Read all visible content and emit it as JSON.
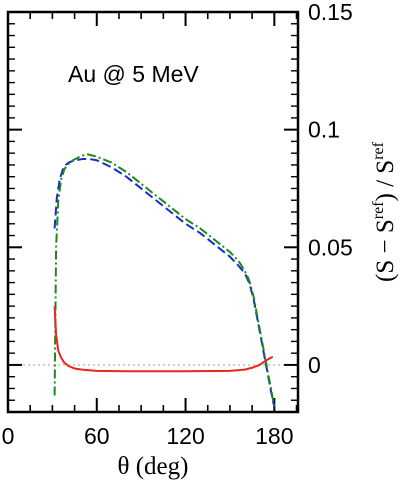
{
  "chart_data": {
    "type": "line",
    "annotation": "Au @ 5 MeV",
    "xlabel": "θ (deg)",
    "ylabel": {
      "base": "(S − S",
      "sup1": "ref",
      "mid": ") / S",
      "sup2": "ref"
    },
    "xlim": [
      0,
      196
    ],
    "ylim": [
      -0.02,
      0.15
    ],
    "x_ticks": [
      0,
      60,
      120,
      180
    ],
    "y_ticks": [
      0,
      0.05,
      0.1,
      0.15
    ],
    "x_tick_labels": [
      "0",
      "60",
      "120",
      "180"
    ],
    "y_tick_labels": [
      "0",
      "0.05",
      "0.1",
      "0.15"
    ],
    "grid": false,
    "reference_line": {
      "y": 0,
      "style": "dotted",
      "color": "#aaaaaa"
    },
    "series": [
      {
        "color": "#1a2bcc",
        "dash": "dashed",
        "x": [
          31.5,
          33,
          35,
          37,
          39,
          41,
          43,
          46,
          50,
          55,
          60,
          70,
          80,
          90,
          100,
          110,
          120,
          130,
          140,
          150,
          156,
          160,
          163,
          166,
          169,
          172,
          175,
          178,
          180
        ],
        "y": [
          0.058,
          0.071,
          0.079,
          0.083,
          0.085,
          0.086,
          0.0865,
          0.087,
          0.0875,
          0.0875,
          0.087,
          0.084,
          0.08,
          0.075,
          0.07,
          0.065,
          0.06,
          0.056,
          0.051,
          0.046,
          0.042,
          0.039,
          0.035,
          0.028,
          0.018,
          0.008,
          -0.002,
          -0.012,
          -0.018
        ]
      },
      {
        "color": "#1a8a1a",
        "dash": "dash-dot",
        "x": [
          31.5,
          32.5,
          34,
          36,
          38,
          40,
          42,
          44,
          47,
          50,
          54,
          60,
          70,
          80,
          90,
          100,
          110,
          120,
          130,
          140,
          150,
          156,
          160,
          163,
          166,
          169,
          172,
          175,
          178,
          180
        ],
        "y": [
          -0.013,
          0.05,
          0.07,
          0.079,
          0.083,
          0.085,
          0.086,
          0.087,
          0.088,
          0.089,
          0.0895,
          0.0885,
          0.086,
          0.082,
          0.077,
          0.072,
          0.067,
          0.062,
          0.058,
          0.053,
          0.048,
          0.044,
          0.04,
          0.036,
          0.029,
          0.019,
          0.009,
          -0.001,
          -0.011,
          -0.018
        ]
      },
      {
        "color": "#e8261b",
        "dash": "solid",
        "x": [
          31.5,
          32.5,
          34,
          36,
          38,
          41,
          45,
          50,
          60,
          80,
          100,
          120,
          140,
          150,
          160,
          165,
          170,
          173,
          176,
          179
        ],
        "y": [
          0.025,
          0.013,
          0.006,
          0.003,
          0.001,
          -0.0005,
          -0.0015,
          -0.002,
          -0.0025,
          -0.0027,
          -0.0027,
          -0.0027,
          -0.0026,
          -0.0025,
          -0.002,
          -0.0012,
          0.0,
          0.0013,
          0.0025,
          0.0035
        ]
      }
    ]
  }
}
